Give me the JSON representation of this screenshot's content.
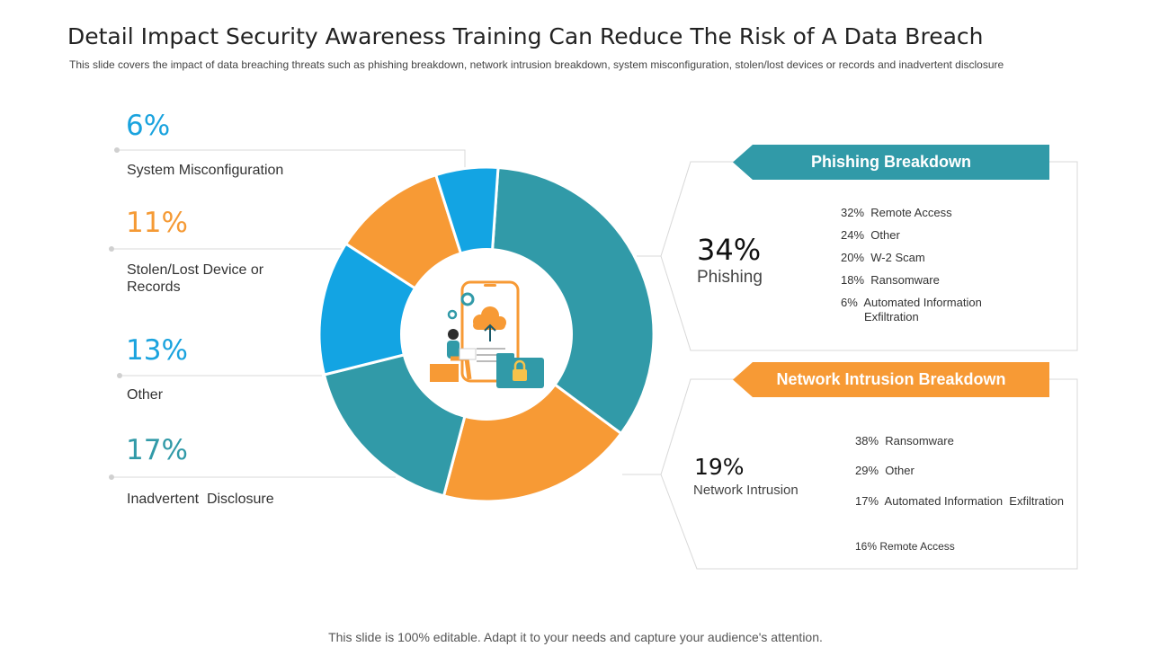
{
  "title": "Detail Impact Security Awareness Training Can Reduce The Risk of A Data Breach",
  "subtitle": "This slide covers the impact of data breaching threats such as phishing breakdown, network intrusion breakdown, system misconfiguration, stolen/lost devices or records and inadvertent disclosure",
  "left_items": [
    {
      "value": "6%",
      "label": "System Misconfiguration",
      "color": "#1aa3de"
    },
    {
      "value": "11%",
      "label": "Stolen/Lost Device or Records",
      "color": "#f59a35"
    },
    {
      "value": "13%",
      "label": "Other",
      "color": "#1aa3de"
    },
    {
      "value": "17%",
      "label": "Inadvertent  Disclosure",
      "color": "#319aa8"
    }
  ],
  "phishing": {
    "banner": "Phishing Breakdown",
    "value": "34%",
    "label": "Phishing",
    "items": [
      {
        "pct": "32%",
        "text": "Remote Access"
      },
      {
        "pct": "24%",
        "text": "Other"
      },
      {
        "pct": "20%",
        "text": "W-2 Scam"
      },
      {
        "pct": "18%",
        "text": "Ransomware"
      },
      {
        "pct": "6%",
        "text": "Automated Information Exfiltration"
      }
    ]
  },
  "network": {
    "banner": "Network Intrusion Breakdown",
    "value": "19%",
    "label": "Network Intrusion",
    "items": [
      {
        "pct": "38%",
        "text": "Ransomware"
      },
      {
        "pct": "29%",
        "text": "Other"
      },
      {
        "pct": "17%",
        "text": "Automated Information  Exfiltration"
      },
      {
        "pct": "16%",
        "text": "Remote Access"
      }
    ]
  },
  "chart_data": {
    "type": "pie",
    "title": "",
    "categories": [
      "Phishing",
      "Network Intrusion",
      "Inadvertent Disclosure",
      "Other",
      "Stolen/Lost Device or Records",
      "System Misconfiguration"
    ],
    "values": [
      34,
      19,
      17,
      13,
      11,
      6
    ],
    "colors": [
      "#319aa8",
      "#f79a35",
      "#319aa8",
      "#13a4e3",
      "#f79a35",
      "#13a4e3"
    ],
    "center_icon": "cloud-security-illustration"
  },
  "footer": "This slide is 100% editable. Adapt it to your needs and capture your audience's attention."
}
